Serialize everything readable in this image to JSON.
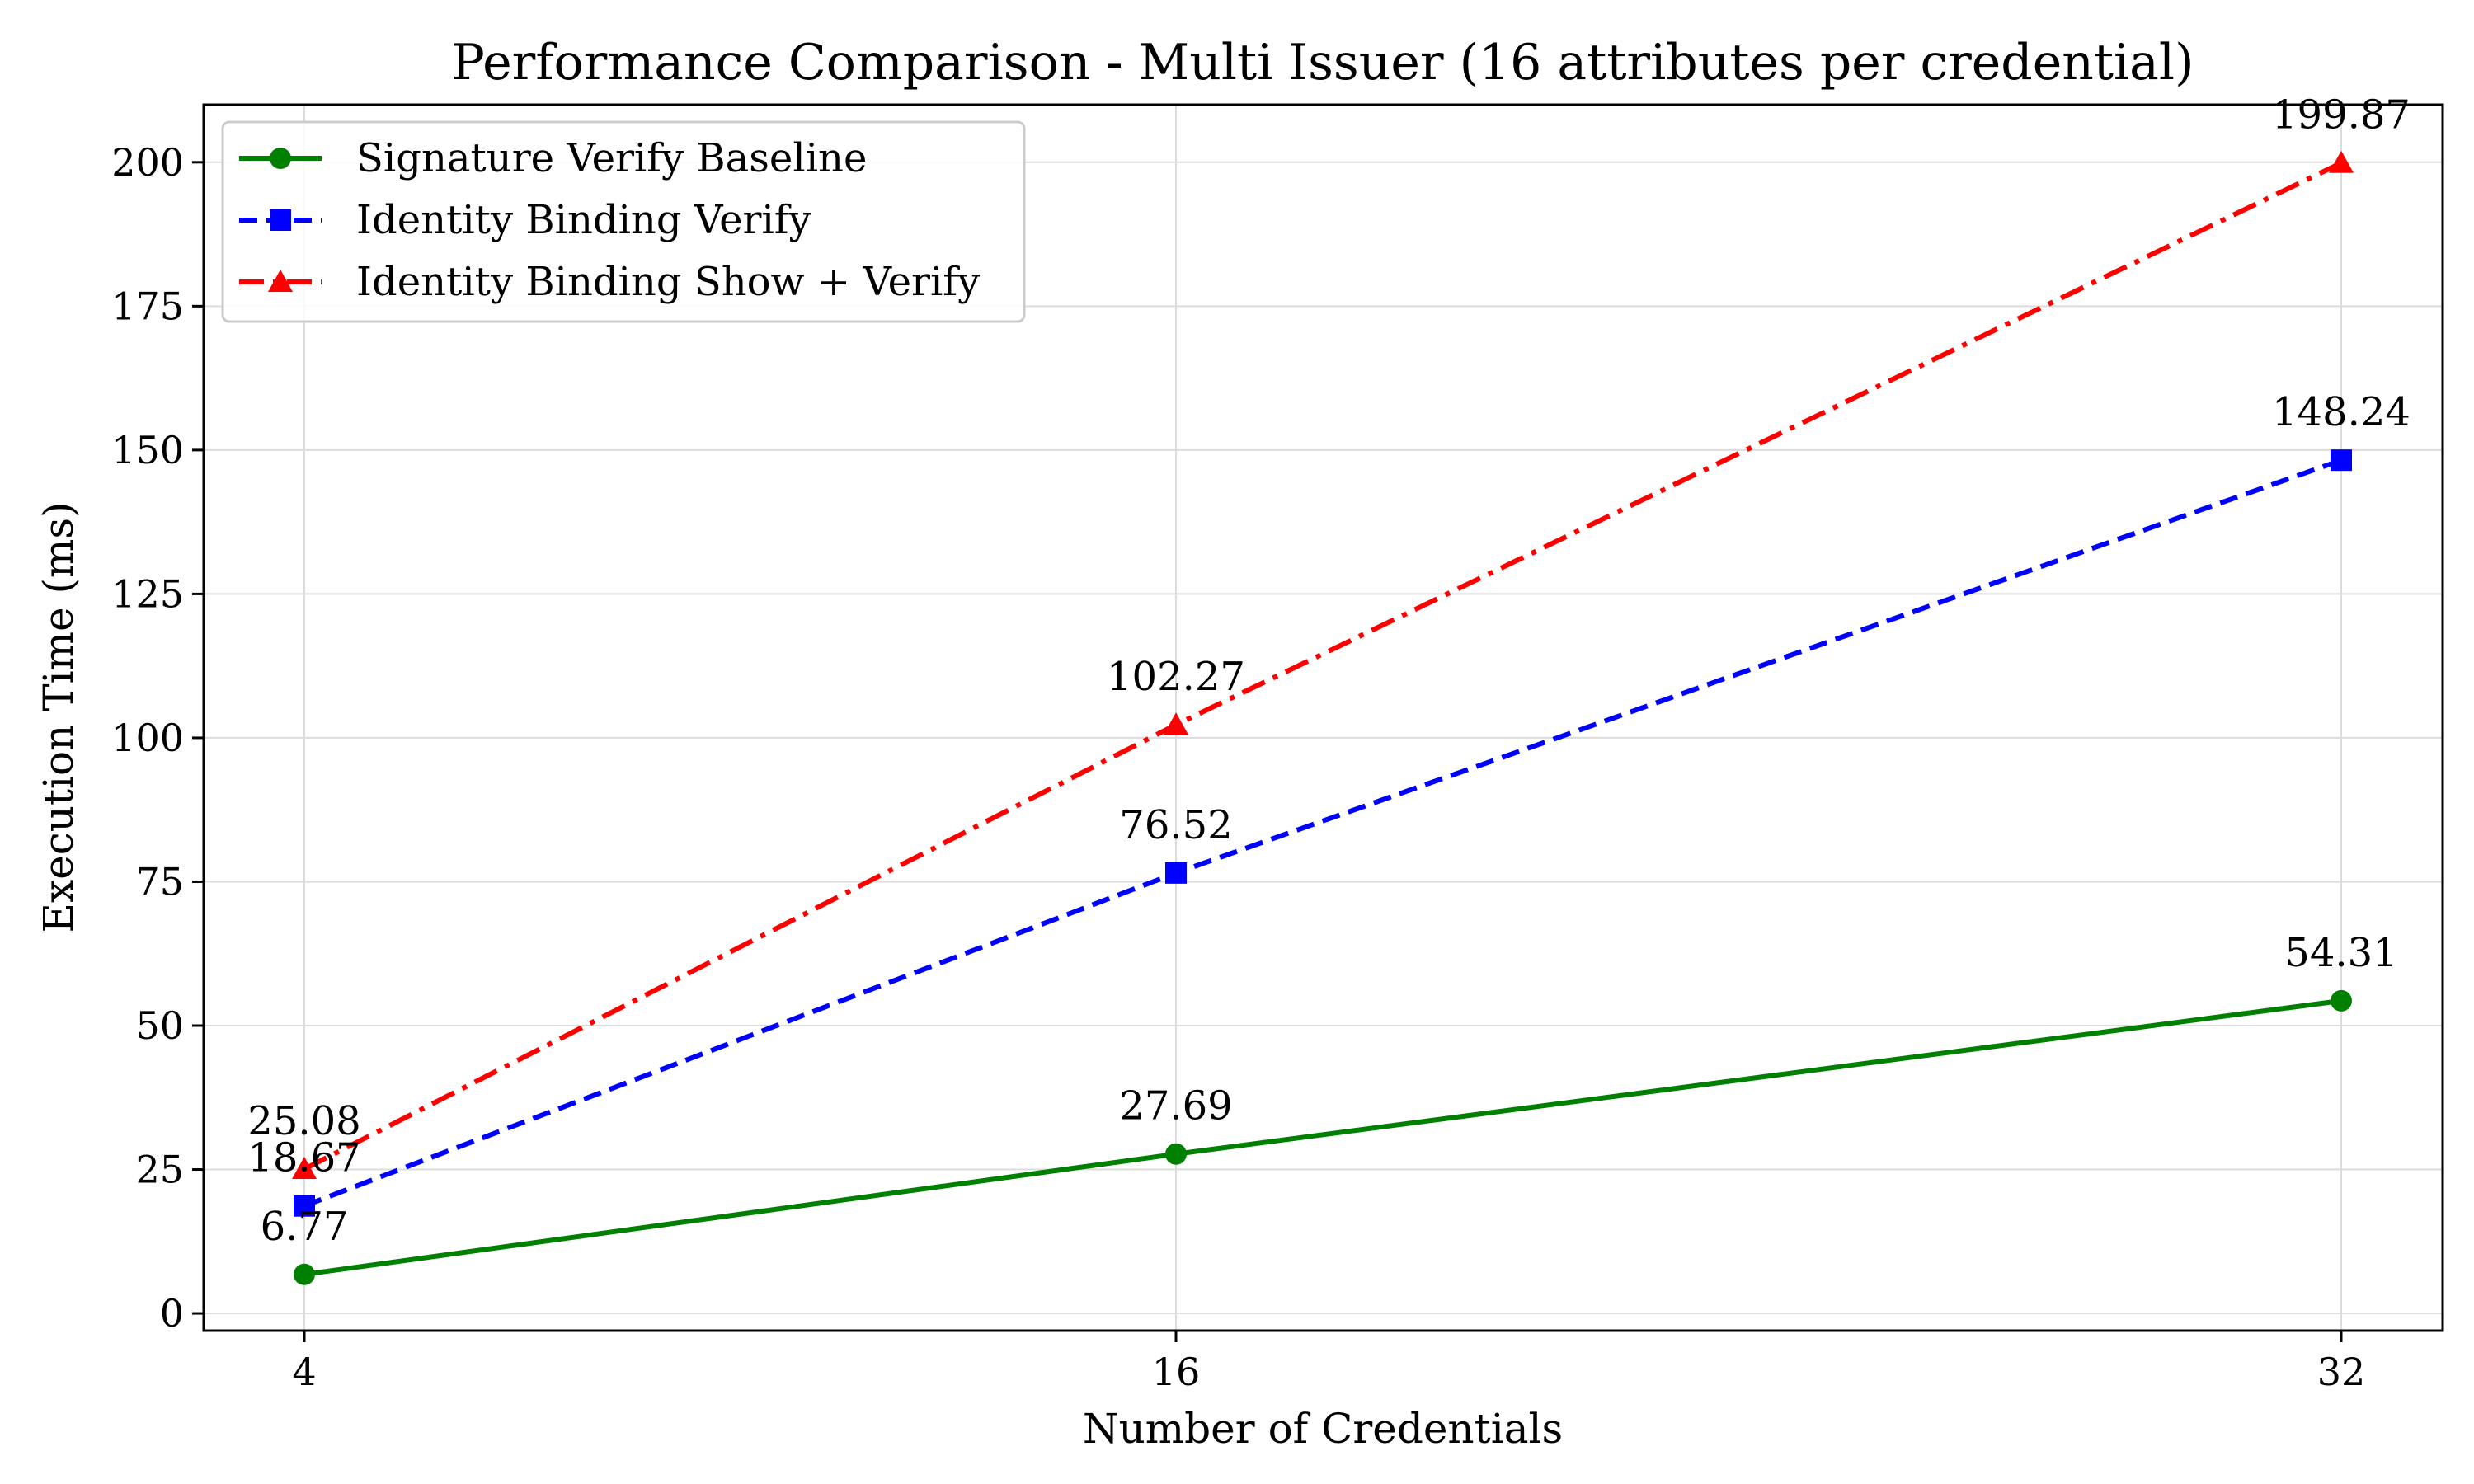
{
  "chart_data": {
    "type": "line",
    "title": "Performance Comparison - Multi Issuer (16 attributes per credential)",
    "xlabel": "Number of Credentials",
    "ylabel": "Execution Time (ms)",
    "x": [
      4,
      16,
      32
    ],
    "x_tick_labels": [
      "4",
      "16",
      "32"
    ],
    "ylim": [
      -3,
      210
    ],
    "y_ticks": [
      0,
      25,
      50,
      75,
      100,
      125,
      150,
      175,
      200
    ],
    "grid": true,
    "legend_position": "upper-left",
    "series": [
      {
        "name": "Signature Verify Baseline",
        "values": [
          6.77,
          27.69,
          54.31
        ],
        "labels": [
          "6.77",
          "27.69",
          "54.31"
        ],
        "color": "#008000",
        "marker": "circle",
        "line_style": "solid"
      },
      {
        "name": "Identity Binding Verify",
        "values": [
          18.67,
          76.52,
          148.24
        ],
        "labels": [
          "18.67",
          "76.52",
          "148.24"
        ],
        "color": "#0000ff",
        "marker": "square",
        "line_style": "dashed"
      },
      {
        "name": "Identity Binding Show + Verify",
        "values": [
          25.08,
          102.27,
          199.87
        ],
        "labels": [
          "25.08",
          "102.27",
          "199.87"
        ],
        "color": "#ff0000",
        "marker": "triangle",
        "line_style": "dashdot"
      }
    ]
  }
}
